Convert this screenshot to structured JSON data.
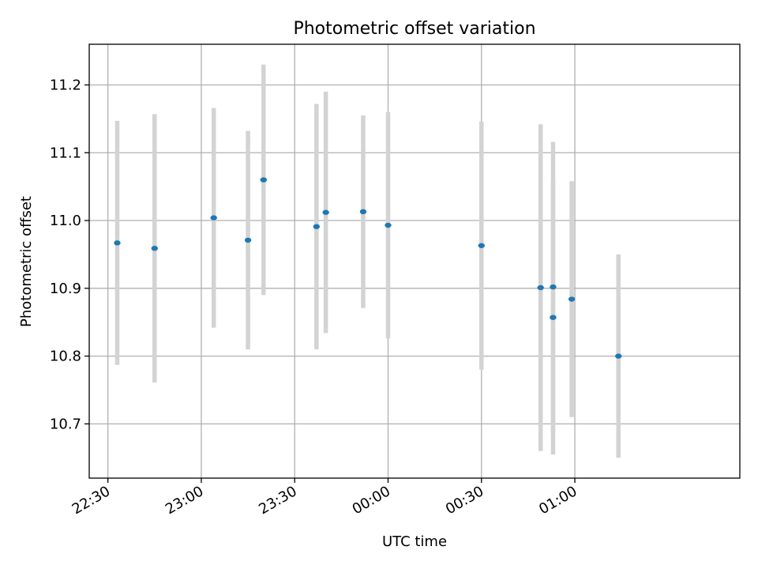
{
  "chart_data": {
    "type": "scatter",
    "title": "Photometric offset variation",
    "xlabel": "UTC time",
    "ylabel": "Photometric offset",
    "xlim": [
      "22:24",
      "01:53"
    ],
    "ylim": [
      10.62,
      11.26
    ],
    "x_ticks": [
      {
        "value": "22:30",
        "label": "22:30"
      },
      {
        "value": "23:00",
        "label": "23:00"
      },
      {
        "value": "23:30",
        "label": "23:30"
      },
      {
        "value": "00:00",
        "label": "00:00"
      },
      {
        "value": "00:30",
        "label": "00:30"
      },
      {
        "value": "01:00",
        "label": "01:00"
      }
    ],
    "y_ticks": [
      {
        "value": 10.7,
        "label": "10.7"
      },
      {
        "value": 10.8,
        "label": "10.8"
      },
      {
        "value": 10.9,
        "label": "10.9"
      },
      {
        "value": 11.0,
        "label": "11.0"
      },
      {
        "value": 11.1,
        "label": "11.1"
      },
      {
        "value": 11.2,
        "label": "11.2"
      }
    ],
    "grid": true,
    "marker_color": "#1f77b4",
    "errorbar_color": "#d3d3d3",
    "axis_color": "#000000",
    "grid_color": "#b0b0b0",
    "points": [
      {
        "x": "22:33",
        "y": 10.967,
        "err": 0.18
      },
      {
        "x": "22:45",
        "y": 10.959,
        "err": 0.198
      },
      {
        "x": "23:04",
        "y": 11.004,
        "err": 0.162
      },
      {
        "x": "23:15",
        "y": 10.971,
        "err": 0.161
      },
      {
        "x": "23:20",
        "y": 11.06,
        "err": 0.17
      },
      {
        "x": "23:37",
        "y": 10.991,
        "err": 0.181
      },
      {
        "x": "23:40",
        "y": 11.012,
        "err": 0.178
      },
      {
        "x": "23:52",
        "y": 11.013,
        "err": 0.142
      },
      {
        "x": "00:00",
        "y": 10.993,
        "err": 0.167
      },
      {
        "x": "00:30",
        "y": 10.963,
        "err": 0.183
      },
      {
        "x": "00:49",
        "y": 10.901,
        "err": 0.241
      },
      {
        "x": "00:53",
        "y": 10.902,
        "err": 0.214
      },
      {
        "x": "00:53",
        "y": 10.857,
        "err": 0.202
      },
      {
        "x": "00:59",
        "y": 10.884,
        "err": 0.174
      },
      {
        "x": "01:14",
        "y": 10.8,
        "err": 0.15
      }
    ]
  }
}
